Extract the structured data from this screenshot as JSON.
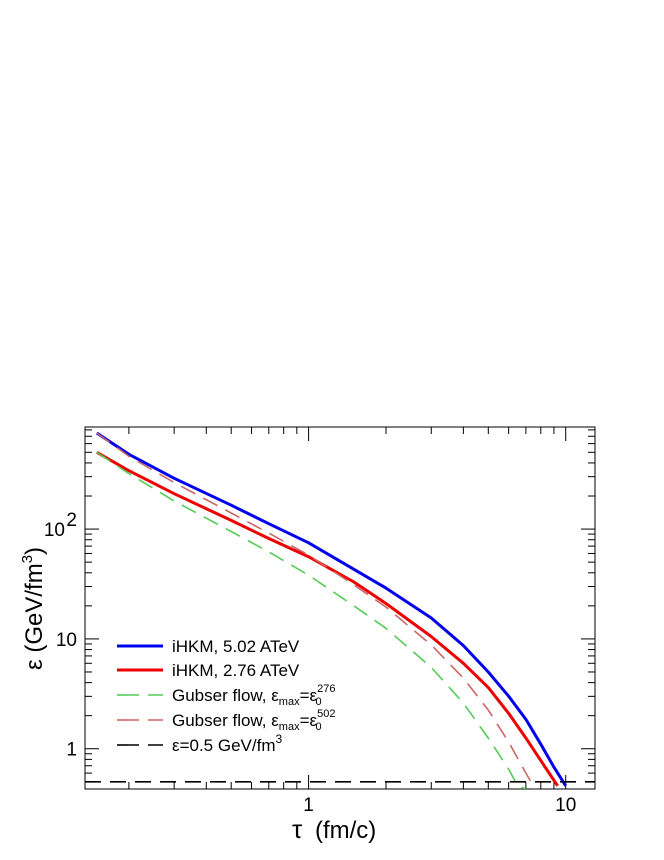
{
  "chart_data": {
    "type": "line",
    "title": "",
    "xlabel": {
      "main": "τ",
      "unit": "(fm/c)"
    },
    "ylabel": {
      "main": "ε (GeV/fm",
      "sup": "3",
      "close": ")"
    },
    "x_scale": "log",
    "y_scale": "log",
    "xlim": [
      0.135,
      13.0
    ],
    "ylim": [
      0.43,
      850
    ],
    "x_ticks": [
      {
        "value": 1,
        "label": "1"
      },
      {
        "value": 10,
        "label": "10"
      }
    ],
    "y_ticks": [
      {
        "value": 1,
        "label": "1",
        "sup": ""
      },
      {
        "value": 10,
        "label": "10",
        "sup": ""
      },
      {
        "value": 100,
        "label": "10",
        "sup": "2"
      }
    ],
    "grid": false,
    "legend_position": "bottom-left",
    "series": [
      {
        "name": "iHKM, 5.02 ATeV",
        "color": "#0000ee",
        "dash": "solid",
        "x": [
          0.15,
          0.2,
          0.3,
          0.5,
          0.7,
          1.0,
          1.5,
          2.0,
          3.0,
          4.0,
          5.0,
          6.0,
          7.0,
          8.0,
          9.0,
          10.0
        ],
        "y": [
          750,
          480,
          290,
          165,
          112,
          75,
          43,
          29,
          15.5,
          8.7,
          5.0,
          3.0,
          1.85,
          1.1,
          0.68,
          0.46
        ]
      },
      {
        "name": "iHKM, 2.76 ATeV",
        "color": "#ee0000",
        "dash": "solid",
        "x": [
          0.15,
          0.2,
          0.3,
          0.5,
          0.7,
          1.0,
          1.5,
          2.0,
          3.0,
          4.0,
          5.0,
          6.0,
          7.0,
          8.0,
          9.3
        ],
        "y": [
          500,
          340,
          210,
          120,
          82,
          56,
          33,
          21,
          10.5,
          6.0,
          3.6,
          2.1,
          1.25,
          0.78,
          0.46
        ]
      },
      {
        "name": "Gubser flow, ε",
        "name_sub": "max",
        "name_mid": "=ε",
        "name_sub2": "0",
        "name_sup2": "276",
        "color": "#55cc55",
        "dash": "long-dash",
        "x": [
          0.15,
          0.2,
          0.3,
          0.5,
          0.7,
          1.0,
          1.5,
          2.0,
          3.0,
          4.0,
          5.0,
          6.0,
          6.5,
          7.0
        ],
        "y": [
          500,
          320,
          180,
          95,
          62,
          38,
          20,
          12.5,
          5.5,
          2.6,
          1.25,
          0.65,
          0.46,
          0.43
        ]
      },
      {
        "name": "Gubser flow, ε",
        "name_sub": "max",
        "name_mid": "=ε",
        "name_sub2": "0",
        "name_sup2": "502",
        "color": "#cc6666",
        "dash": "long-dash",
        "x": [
          0.15,
          0.2,
          0.3,
          0.5,
          0.7,
          1.0,
          1.5,
          2.0,
          3.0,
          4.0,
          5.0,
          6.0,
          7.0,
          7.6
        ],
        "y": [
          750,
          460,
          265,
          140,
          92,
          58,
          31,
          19.5,
          8.8,
          4.4,
          2.25,
          1.15,
          0.6,
          0.43
        ]
      },
      {
        "name": "ε=0.5 GeV/fm",
        "name_sup": "3",
        "color": "#000000",
        "dash": "long-dash",
        "x": [
          0.135,
          13.0
        ],
        "y": [
          0.5,
          0.5
        ]
      }
    ]
  }
}
